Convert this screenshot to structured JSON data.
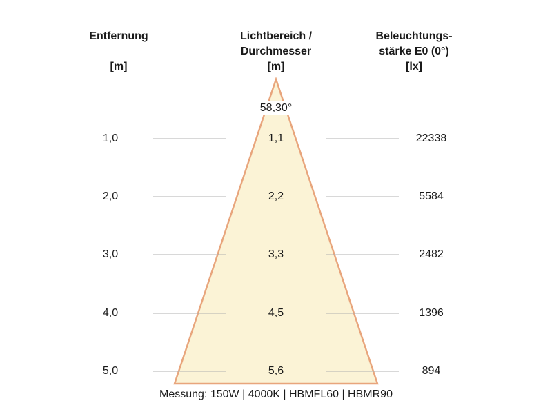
{
  "headers": {
    "distance": {
      "line1": "Entfernung",
      "unit": "[m]"
    },
    "beam": {
      "line1": "Lichtbereich /",
      "line2": "Durchmesser",
      "unit": "[m]"
    },
    "illuminance": {
      "line1": "Beleuchtungs-",
      "line2": "stärke E0 (0°)",
      "unit": "[lx]"
    }
  },
  "beam_angle": "58,30°",
  "rows": [
    {
      "distance": "1,0",
      "diameter": "1,1",
      "lux": "22338"
    },
    {
      "distance": "2,0",
      "diameter": "2,2",
      "lux": "5584"
    },
    {
      "distance": "3,0",
      "diameter": "3,3",
      "lux": "2482"
    },
    {
      "distance": "4,0",
      "diameter": "4,5",
      "lux": "1396"
    },
    {
      "distance": "5,0",
      "diameter": "5,6",
      "lux": "894"
    }
  ],
  "footer": "Messung: 150W | 4000K | HBMFL60 | HBMR90",
  "colors": {
    "cone_fill": "#fbf3d6",
    "cone_stroke": "#e8a57c",
    "guide_line": "#b0b0b0"
  }
}
